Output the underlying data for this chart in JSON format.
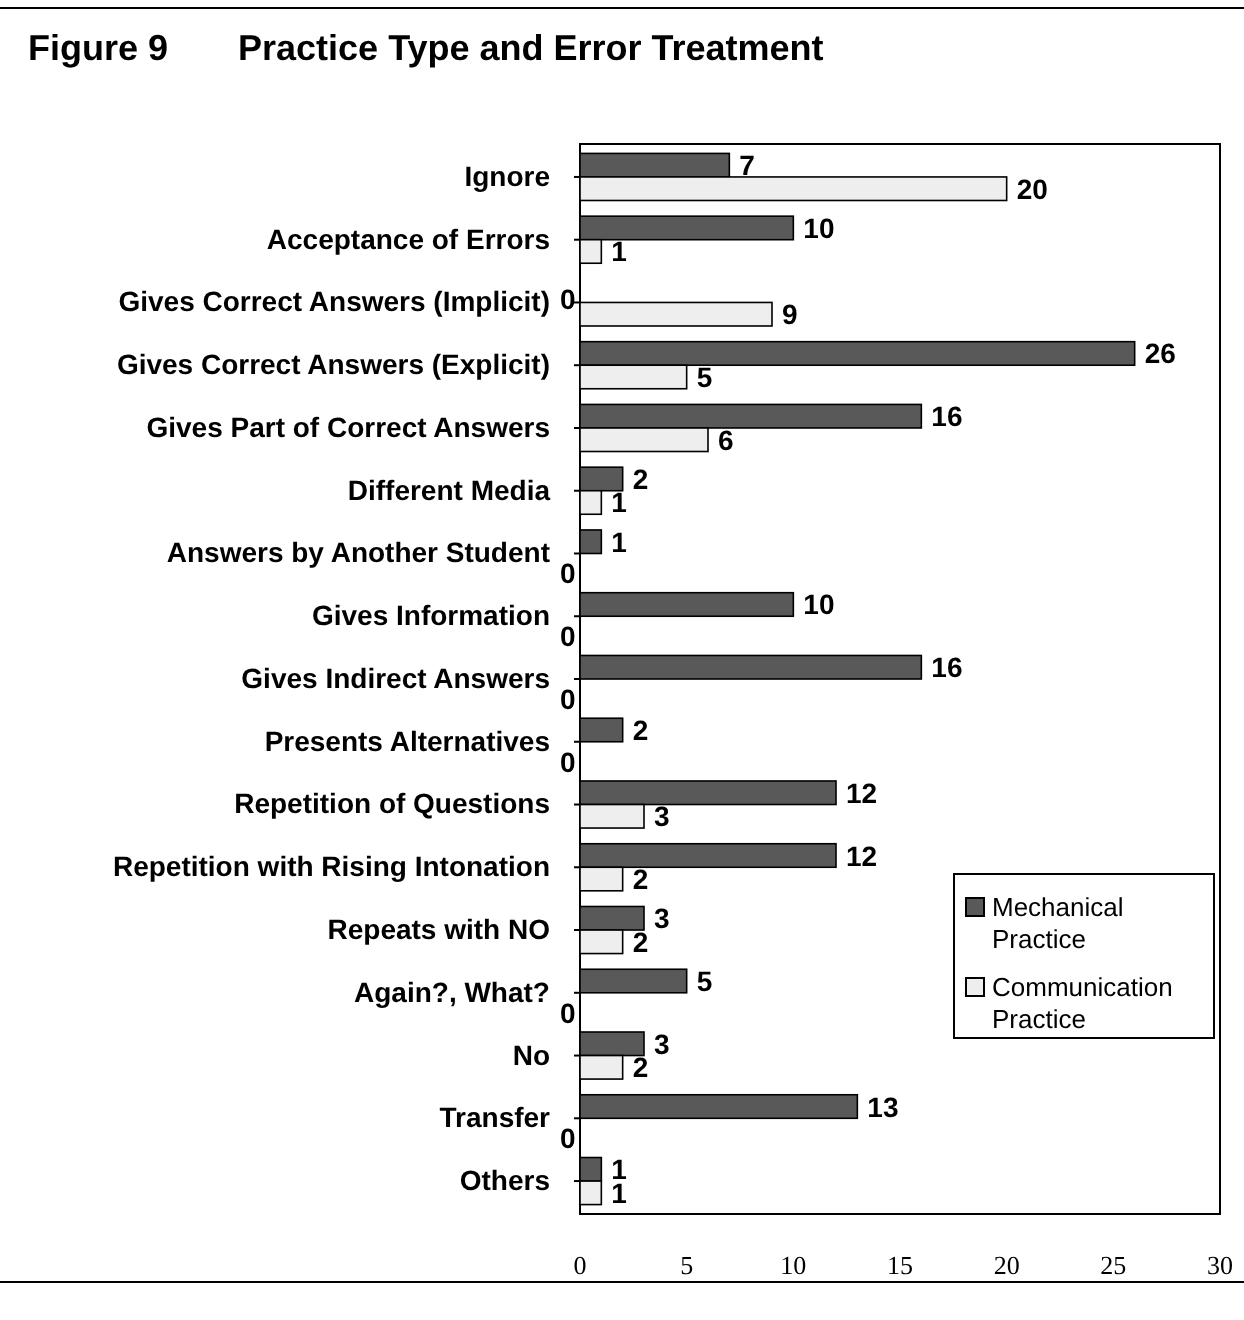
{
  "chart_data": {
    "type": "bar",
    "orientation": "horizontal",
    "title": "Figure 9       Practice Type and Error Treatment",
    "categories": [
      "Ignore",
      "Acceptance of Errors",
      "Gives Correct Answers (Implicit)",
      "Gives Correct Answers (Explicit)",
      "Gives Part of Correct Answers",
      "Different Media",
      "Answers by Another Student",
      "Gives Information",
      "Gives Indirect Answers",
      "Presents Alternatives",
      "Repetition of Questions",
      "Repetition with Rising Intonation",
      "Repeats with NO",
      "Again?, What?",
      "No",
      "Transfer",
      "Others"
    ],
    "series": [
      {
        "name": "Mechanical Practice",
        "color": "#595959",
        "values": [
          7,
          10,
          0,
          26,
          16,
          2,
          1,
          10,
          16,
          2,
          12,
          12,
          3,
          5,
          3,
          13,
          1
        ]
      },
      {
        "name": "Communication Practice",
        "color": "#eeeeee",
        "values": [
          20,
          1,
          9,
          5,
          6,
          1,
          0,
          0,
          0,
          0,
          3,
          2,
          2,
          0,
          2,
          0,
          1
        ]
      }
    ],
    "xlim": [
      0,
      30
    ],
    "xticks": [
      0,
      5,
      10,
      15,
      20,
      25,
      30
    ],
    "data_labels": true,
    "legend": "bottom right",
    "grid": false
  }
}
